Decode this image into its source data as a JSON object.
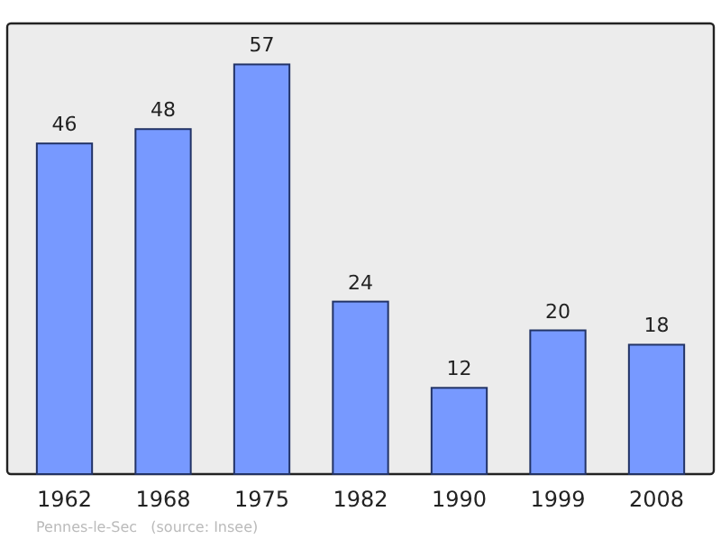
{
  "chart_data": {
    "type": "bar",
    "categories": [
      "1962",
      "1968",
      "1975",
      "1982",
      "1990",
      "1999",
      "2008"
    ],
    "values": [
      46,
      48,
      57,
      24,
      12,
      20,
      18
    ],
    "color": "#7799ff",
    "data_labels": true,
    "grid": false,
    "annotations": [
      "Pennes-le-Sec   (source: Insee)"
    ]
  }
}
